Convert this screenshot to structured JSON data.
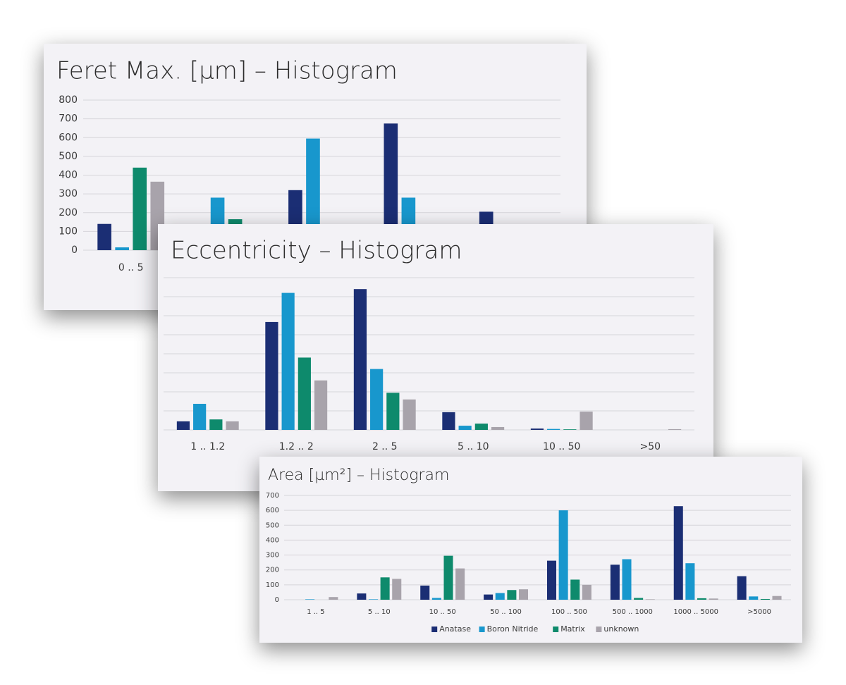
{
  "chart_data": [
    {
      "type": "bar",
      "title": "Feret Max. [µm] – Histogram",
      "categories": [
        "0 .. 5",
        null,
        null,
        null,
        null
      ],
      "series": [
        {
          "color": "#1b2e74",
          "values": [
            140,
            null,
            320,
            675,
            205
          ]
        },
        {
          "color": "#1897cd",
          "values": [
            15,
            280,
            595,
            280,
            null
          ]
        },
        {
          "color": "#0e8a6c",
          "values": [
            440,
            165,
            null,
            null,
            null
          ]
        },
        {
          "color": "#a8a3ab",
          "values": [
            365,
            null,
            null,
            null,
            null
          ]
        }
      ],
      "ylim": [
        0,
        800
      ],
      "yticks": [
        0,
        100,
        200,
        300,
        400,
        500,
        600,
        700,
        800
      ],
      "grid": true,
      "show_tick_labels": true
    },
    {
      "type": "bar",
      "title": "Eccentricity – Histogram",
      "categories": [
        "1 .. 1.2",
        "1.2 .. 2",
        "2 .. 5",
        "5 .. 10",
        "10 .. 50",
        ">50"
      ],
      "series": [
        {
          "color": "#1b2e74",
          "values": [
            0.45,
            5.67,
            7.4,
            0.93,
            0.07,
            0
          ]
        },
        {
          "color": "#1897cd",
          "values": [
            1.37,
            7.2,
            3.2,
            0.22,
            0.05,
            0
          ]
        },
        {
          "color": "#0e8a6c",
          "values": [
            0.55,
            3.8,
            1.95,
            0.33,
            0.03,
            0
          ]
        },
        {
          "color": "#a8a3ab",
          "values": [
            0.45,
            2.6,
            1.6,
            0.15,
            0.96,
            0.04
          ]
        }
      ],
      "ylim": [
        0,
        8
      ],
      "yticks": [
        0,
        1,
        2,
        3,
        4,
        5,
        6,
        7,
        8
      ],
      "grid": true,
      "show_tick_labels": false
    },
    {
      "type": "bar",
      "title": "Area [µm²] – Histogram",
      "categories": [
        "1 .. 5",
        "5 .. 10",
        "10 .. 50",
        "50 .. 100",
        "100 .. 500",
        "500 .. 1000",
        "1000 .. 5000",
        ">5000"
      ],
      "series": [
        {
          "name": "Anatase",
          "color": "#1b2e74",
          "values": [
            0,
            42,
            95,
            35,
            262,
            235,
            628,
            158
          ]
        },
        {
          "name": "Boron Nitride",
          "color": "#1897cd",
          "values": [
            3,
            3,
            12,
            45,
            600,
            272,
            245,
            22
          ]
        },
        {
          "name": "Matrix",
          "color": "#0e8a6c",
          "values": [
            0,
            150,
            295,
            65,
            135,
            12,
            10,
            5
          ]
        },
        {
          "name": "unknown",
          "color": "#a8a3ab",
          "values": [
            18,
            140,
            210,
            70,
            100,
            3,
            8,
            25
          ]
        }
      ],
      "ylim": [
        0,
        700
      ],
      "yticks": [
        0,
        100,
        200,
        300,
        400,
        500,
        600,
        700
      ],
      "grid": true,
      "show_tick_labels": true,
      "legend": "bottom"
    }
  ]
}
